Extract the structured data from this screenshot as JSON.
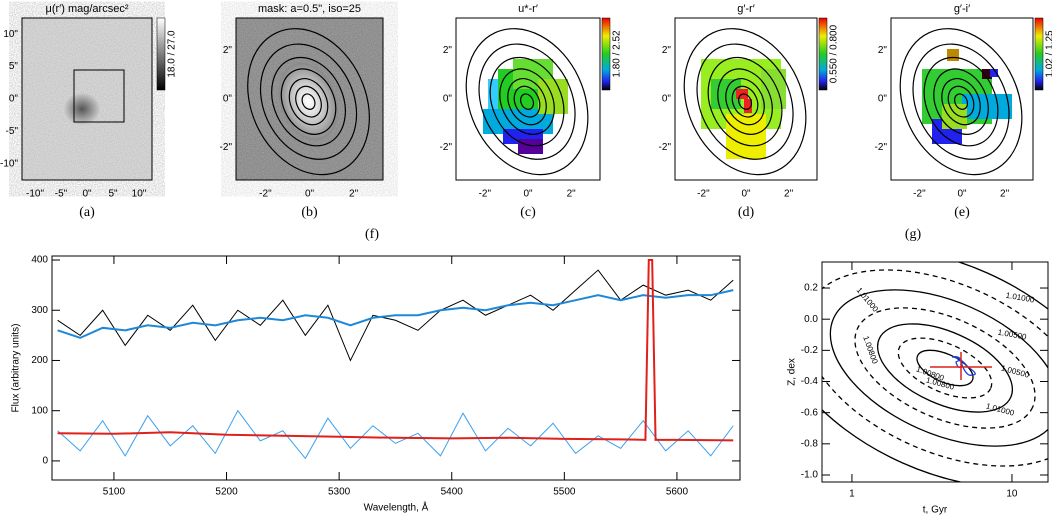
{
  "panels": [
    {
      "title": "μ(r′) mag/arcsec²",
      "xticks": [
        "-10\"",
        "-5\"",
        "0\"",
        "5\"",
        "10\""
      ],
      "yticks": [
        "10\"",
        "5\"",
        "0\"",
        "-5\"",
        "-10\""
      ],
      "colorbar": "18.0 / 27.0",
      "caption": "(a)"
    },
    {
      "title": "mask: a=0.5\", iso=25",
      "xticks": [
        "-2\"",
        "0\"",
        "2\""
      ],
      "yticks": [
        "2\"",
        "0\"",
        "-2\""
      ],
      "caption": "(b)"
    },
    {
      "title": "u*-r′",
      "xticks": [
        "-2\"",
        "0\"",
        "2\""
      ],
      "yticks": [
        "2\"",
        "0\"",
        "-2\""
      ],
      "colorbar": "1.80 / 2.52",
      "caption": "(c)"
    },
    {
      "title": "g′-r′",
      "xticks": [
        "-2\"",
        "0\"",
        "2\""
      ],
      "yticks": [
        "2\"",
        "0\"",
        "-2\""
      ],
      "colorbar": "0.550 / 0.800",
      "caption": "(d)"
    },
    {
      "title": "g′-i′",
      "xticks": [
        "-2\"",
        "0\"",
        "2\""
      ],
      "yticks": [
        "2\"",
        "0\"",
        "-2\""
      ],
      "colorbar": "1.02 / 1.25",
      "caption": "(e)"
    }
  ],
  "captions": {
    "f": "(f)",
    "g": "(g)"
  },
  "chart_data": [
    {
      "type": "line",
      "xlabel": "Wavelength, Å",
      "ylabel": "Flux (arbitrary units)",
      "xlim": [
        5045,
        5656
      ],
      "ylim": [
        -38,
        408
      ],
      "xticks": [
        5100,
        5200,
        5300,
        5400,
        5500,
        5600
      ],
      "yticks": [
        0,
        100,
        200,
        300,
        400
      ],
      "x": [
        5050,
        5070,
        5090,
        5110,
        5130,
        5150,
        5170,
        5190,
        5210,
        5230,
        5250,
        5270,
        5290,
        5310,
        5330,
        5350,
        5370,
        5390,
        5410,
        5430,
        5450,
        5470,
        5490,
        5510,
        5530,
        5550,
        5570,
        5590,
        5610,
        5630,
        5650
      ],
      "series": [
        {
          "color": "#3aa0f0",
          "values": [
            60,
            20,
            80,
            10,
            90,
            30,
            70,
            15,
            100,
            40,
            60,
            5,
            85,
            25,
            70,
            35,
            55,
            10,
            95,
            20,
            65,
            30,
            75,
            15,
            50,
            25,
            80,
            20,
            60,
            10,
            70
          ]
        },
        {
          "color": "#000000",
          "values": [
            280,
            250,
            300,
            230,
            290,
            260,
            310,
            240,
            300,
            270,
            320,
            250,
            310,
            200,
            290,
            280,
            260,
            300,
            320,
            290,
            310,
            330,
            300,
            340,
            380,
            320,
            350,
            330,
            340,
            320,
            360
          ]
        },
        {
          "color": "#1e88d8",
          "values": [
            260,
            245,
            265,
            260,
            270,
            265,
            275,
            270,
            280,
            285,
            280,
            290,
            285,
            270,
            285,
            290,
            290,
            300,
            305,
            300,
            310,
            315,
            310,
            320,
            330,
            320,
            330,
            325,
            330,
            330,
            340
          ]
        },
        {
          "color": "#e0201a",
          "x": [
            5050,
            5100,
            5150,
            5200,
            5250,
            5300,
            5350,
            5400,
            5450,
            5500,
            5550,
            5572,
            5575,
            5578,
            5581,
            5600,
            5650
          ],
          "values": [
            55,
            54,
            57,
            52,
            50,
            48,
            46,
            45,
            46,
            44,
            43,
            42,
            400,
            400,
            42,
            42,
            41
          ]
        }
      ]
    },
    {
      "type": "contour",
      "xlabel": "t, Gyr",
      "ylabel": "Z, dex",
      "log_x": true,
      "xlim": [
        0.65,
        16.8
      ],
      "ylim": [
        -1.045,
        0.367
      ],
      "xticks": [
        1,
        10
      ],
      "yticks": [
        {
          "value": -1,
          "label": "-1.0"
        },
        -0.8,
        -0.6,
        -0.4,
        -0.2,
        {
          "value": 0,
          "label": "0.0"
        },
        0.2
      ],
      "contour_labels": [
        "1.01000",
        "1.00800",
        "1.00800",
        "1.01000",
        "1.00500",
        "1.00500",
        "1.00800",
        "1.01000"
      ]
    }
  ]
}
